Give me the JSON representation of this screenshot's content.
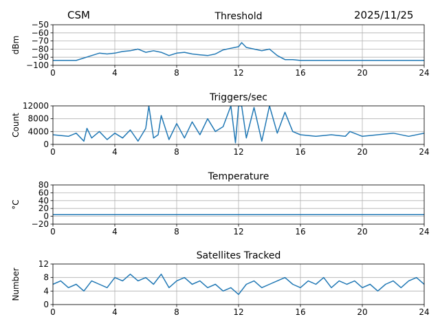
{
  "header": {
    "station": "CSM",
    "date": "2025/11/25"
  },
  "colors": {
    "line": "#1f77b4",
    "grid": "#b0b0b0"
  },
  "chart_data": [
    {
      "type": "line",
      "title": "Threshold",
      "xlabel": "",
      "ylabel": "dBm",
      "xlim": [
        0,
        24
      ],
      "ylim": [
        -100,
        -50
      ],
      "xticks": [
        0,
        4,
        8,
        12,
        16,
        20,
        24
      ],
      "xtick_labels": [
        "0",
        "4",
        "8",
        "12",
        "16",
        "20",
        "24"
      ],
      "yticks": [
        -100,
        -90,
        -80,
        -70,
        -60,
        -50
      ],
      "ytick_labels": [
        "−100",
        "−90",
        "−80",
        "−70",
        "−60",
        "−50"
      ],
      "grid": true,
      "series": [
        {
          "name": "threshold",
          "x": [
            0,
            1.5,
            2,
            2.5,
            3,
            3.5,
            4,
            4.5,
            5,
            5.5,
            6,
            6.5,
            7,
            7.5,
            8,
            8.5,
            9,
            9.5,
            10,
            10.5,
            11,
            11.5,
            12,
            12.2,
            12.5,
            13,
            13.5,
            14,
            14.5,
            15,
            15.5,
            16,
            18,
            20,
            22,
            24
          ],
          "y": [
            -94,
            -94,
            -91,
            -88,
            -85,
            -86,
            -85,
            -83,
            -82,
            -80,
            -84,
            -82,
            -84,
            -88,
            -85,
            -84,
            -86,
            -87,
            -88,
            -86,
            -81,
            -79,
            -77,
            -72,
            -78,
            -80,
            -82,
            -80,
            -88,
            -93,
            -93,
            -94,
            -94,
            -94,
            -94,
            -94
          ]
        }
      ]
    },
    {
      "type": "line",
      "title": "Triggers/sec",
      "xlabel": "",
      "ylabel": "Count",
      "xlim": [
        0,
        24
      ],
      "ylim": [
        0,
        12000
      ],
      "xticks": [
        0,
        4,
        8,
        12,
        16,
        20,
        24
      ],
      "xtick_labels": [
        "0",
        "4",
        "8",
        "12",
        "16",
        "20",
        "24"
      ],
      "yticks": [
        0,
        4000,
        8000,
        12000
      ],
      "ytick_labels": [
        "0",
        "4000",
        "8000",
        "12000"
      ],
      "grid": true,
      "series": [
        {
          "name": "triggers",
          "x": [
            0,
            1,
            1.5,
            2,
            2.2,
            2.5,
            3,
            3.5,
            4,
            4.5,
            5,
            5.5,
            6,
            6.2,
            6.5,
            6.8,
            7,
            7.5,
            8,
            8.5,
            9,
            9.5,
            10,
            10.5,
            11,
            11.5,
            11.8,
            12,
            12.2,
            12.5,
            13,
            13.5,
            14,
            14.5,
            15,
            15.5,
            16,
            17,
            18,
            18.9,
            19.2,
            20,
            21,
            22,
            23,
            24
          ],
          "y": [
            3000,
            2500,
            3500,
            1000,
            5000,
            2000,
            4000,
            1500,
            3500,
            2000,
            4500,
            1000,
            5000,
            12000,
            2000,
            3000,
            9000,
            1500,
            6500,
            2000,
            7000,
            3000,
            8000,
            4000,
            5500,
            12000,
            500,
            12000,
            12000,
            2000,
            11500,
            1000,
            12000,
            3500,
            10000,
            4000,
            3000,
            2500,
            3000,
            2500,
            4000,
            2500,
            3000,
            3500,
            2500,
            3500
          ]
        }
      ]
    },
    {
      "type": "line",
      "title": "Temperature",
      "xlabel": "",
      "ylabel": "°C",
      "xlim": [
        0,
        24
      ],
      "ylim": [
        -20,
        80
      ],
      "xticks": [
        0,
        4,
        8,
        12,
        16,
        20,
        24
      ],
      "xtick_labels": [
        "0",
        "4",
        "8",
        "12",
        "16",
        "20",
        "24"
      ],
      "yticks": [
        -20,
        0,
        20,
        40,
        60,
        80
      ],
      "ytick_labels": [
        "−20",
        "0",
        "20",
        "40",
        "60",
        "80"
      ],
      "grid": true,
      "series": [
        {
          "name": "temperature",
          "x": [
            0,
            24
          ],
          "y": [
            4,
            4
          ]
        }
      ]
    },
    {
      "type": "line",
      "title": "Satellites Tracked",
      "xlabel": "",
      "ylabel": "Number",
      "xlim": [
        0,
        24
      ],
      "ylim": [
        0,
        12
      ],
      "xticks": [
        0,
        4,
        8,
        12,
        16,
        20,
        24
      ],
      "xtick_labels": [
        "0",
        "4",
        "8",
        "12",
        "16",
        "20",
        "24"
      ],
      "yticks": [
        0,
        4,
        8,
        12
      ],
      "ytick_labels": [
        "0",
        "4",
        "8",
        "12"
      ],
      "grid": true,
      "series": [
        {
          "name": "satellites",
          "x": [
            0,
            0.5,
            1,
            1.5,
            2,
            2.5,
            3,
            3.5,
            4,
            4.5,
            5,
            5.5,
            6,
            6.5,
            7,
            7.5,
            8,
            8.5,
            9,
            9.5,
            10,
            10.5,
            11,
            11.5,
            12,
            12.5,
            13,
            13.5,
            14,
            14.5,
            15,
            15.5,
            16,
            16.5,
            17,
            17.5,
            18,
            18.5,
            19,
            19.5,
            20,
            20.5,
            21,
            21.5,
            22,
            22.5,
            23,
            23.5,
            24
          ],
          "y": [
            6,
            7,
            5,
            6,
            4,
            7,
            6,
            5,
            8,
            7,
            9,
            7,
            8,
            6,
            9,
            5,
            7,
            8,
            6,
            7,
            5,
            6,
            4,
            5,
            3,
            6,
            7,
            5,
            6,
            7,
            8,
            6,
            5,
            7,
            6,
            8,
            5,
            7,
            6,
            7,
            5,
            6,
            4,
            6,
            7,
            5,
            7,
            8,
            6
          ]
        }
      ]
    }
  ]
}
